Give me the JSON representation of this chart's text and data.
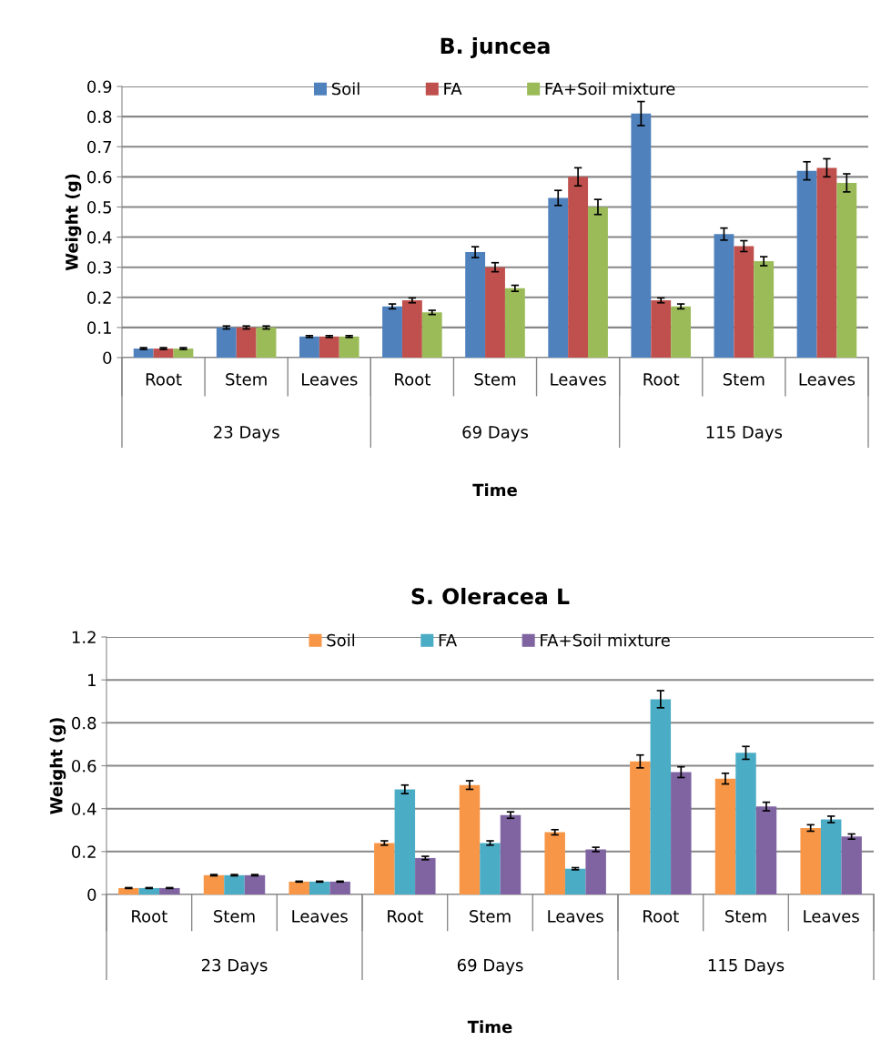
{
  "chart_data": [
    {
      "type": "bar",
      "title": "B. juncea",
      "xlabel": "Time",
      "ylabel": "Weight (g)",
      "categories": [
        "Root",
        "Stem",
        "Leaves",
        "Root",
        "Stem",
        "Leaves",
        "Root",
        "Stem",
        "Leaves"
      ],
      "annotations": [
        "23 Days",
        "69 Days",
        "115 Days"
      ],
      "series": [
        {
          "name": "Soil",
          "color": "#4f81bd",
          "values": [
            0.03,
            0.1,
            0.07,
            0.17,
            0.35,
            0.53,
            0.81,
            0.41,
            0.62
          ],
          "errors": [
            0.003,
            0.005,
            0.003,
            0.008,
            0.018,
            0.025,
            0.04,
            0.02,
            0.03
          ]
        },
        {
          "name": "FA",
          "color": "#c0504d",
          "values": [
            0.03,
            0.1,
            0.07,
            0.19,
            0.3,
            0.6,
            0.19,
            0.37,
            0.63
          ],
          "errors": [
            0.003,
            0.005,
            0.003,
            0.008,
            0.015,
            0.03,
            0.008,
            0.018,
            0.03
          ]
        },
        {
          "name": "FA+Soil mixture",
          "color": "#9bbb59",
          "values": [
            0.03,
            0.1,
            0.07,
            0.15,
            0.23,
            0.5,
            0.17,
            0.32,
            0.58
          ],
          "errors": [
            0.003,
            0.005,
            0.003,
            0.007,
            0.01,
            0.025,
            0.008,
            0.015,
            0.03
          ]
        }
      ],
      "ylim": [
        0,
        0.9
      ],
      "yticks": [
        0,
        0.1,
        0.2,
        0.3,
        0.4,
        0.5,
        0.6,
        0.7,
        0.8,
        0.9
      ],
      "grid": "y",
      "legend": "top"
    },
    {
      "type": "bar",
      "title": "S. Oleracea L",
      "xlabel": "Time",
      "ylabel": "Weight (g)",
      "categories": [
        "Root",
        "Stem",
        "Leaves",
        "Root",
        "Stem",
        "Leaves",
        "Root",
        "Stem",
        "Leaves"
      ],
      "annotations": [
        "23 Days",
        "69 Days",
        "115 Days"
      ],
      "series": [
        {
          "name": "Soil",
          "color": "#f79646",
          "values": [
            0.03,
            0.09,
            0.06,
            0.24,
            0.51,
            0.29,
            0.62,
            0.54,
            0.31
          ],
          "errors": [
            0.002,
            0.003,
            0.002,
            0.01,
            0.02,
            0.012,
            0.03,
            0.025,
            0.015
          ]
        },
        {
          "name": "FA",
          "color": "#4bacc6",
          "values": [
            0.03,
            0.09,
            0.06,
            0.49,
            0.24,
            0.12,
            0.91,
            0.66,
            0.35
          ],
          "errors": [
            0.002,
            0.003,
            0.002,
            0.02,
            0.01,
            0.005,
            0.04,
            0.03,
            0.015
          ]
        },
        {
          "name": "FA+Soil mixture",
          "color": "#8064a2",
          "values": [
            0.03,
            0.09,
            0.06,
            0.17,
            0.37,
            0.21,
            0.57,
            0.41,
            0.27
          ],
          "errors": [
            0.002,
            0.003,
            0.002,
            0.008,
            0.015,
            0.01,
            0.025,
            0.02,
            0.012
          ]
        }
      ],
      "ylim": [
        0,
        1.2
      ],
      "yticks": [
        0,
        0.2,
        0.4,
        0.6,
        0.8,
        1,
        1.2
      ],
      "grid": "y",
      "legend": "top"
    }
  ]
}
